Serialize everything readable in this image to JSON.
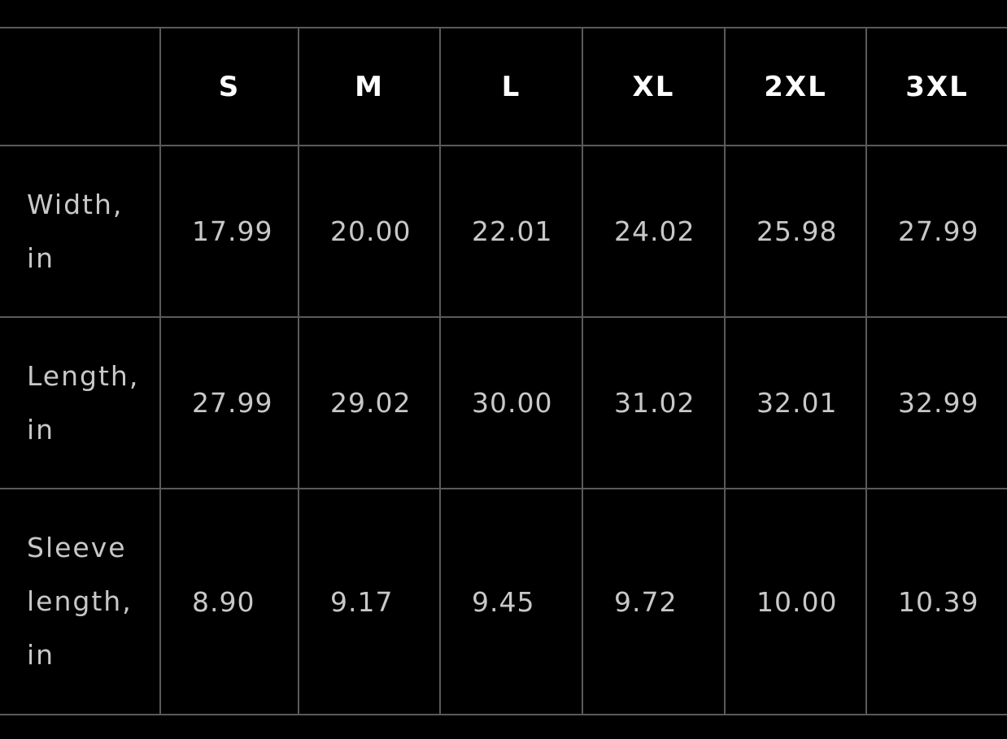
{
  "table": {
    "columns": [
      "S",
      "M",
      "L",
      "XL",
      "2XL",
      "3XL"
    ],
    "rows": [
      {
        "label": "Width, in",
        "values": [
          "17.99",
          "20.00",
          "22.01",
          "24.02",
          "25.98",
          "27.99"
        ]
      },
      {
        "label": "Length, in",
        "values": [
          "27.99",
          "29.02",
          "30.00",
          "31.02",
          "32.01",
          "32.99"
        ]
      },
      {
        "label": "Sleeve length, in",
        "values": [
          "8.90",
          "9.17",
          "9.45",
          "9.72",
          "10.00",
          "10.39"
        ]
      }
    ]
  }
}
